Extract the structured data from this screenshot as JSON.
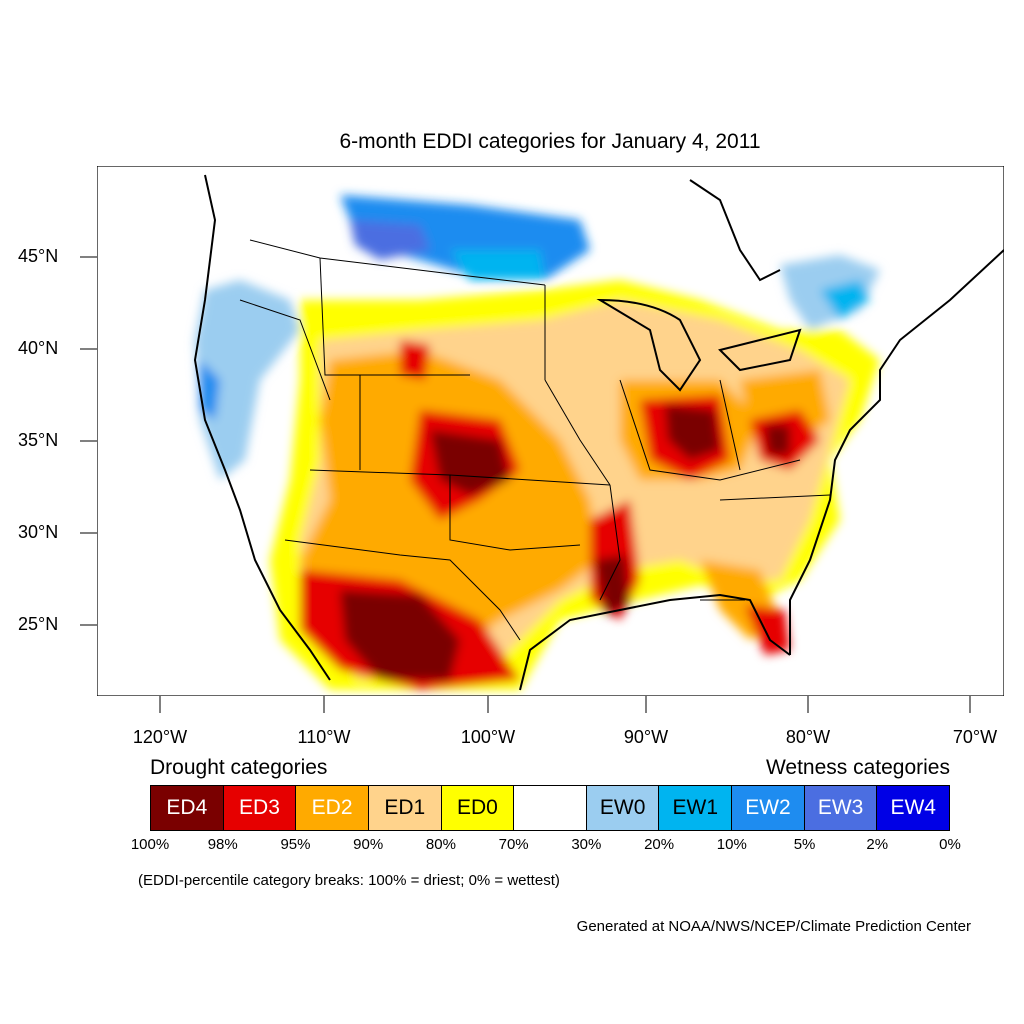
{
  "title": "6-month EDDI categories for January 4, 2011",
  "lat_labels": [
    "45°N",
    "40°N",
    "35°N",
    "30°N",
    "25°N"
  ],
  "lon_labels": [
    "120°W",
    "110°W",
    "100°W",
    "90°W",
    "80°W",
    "70°W"
  ],
  "legend": {
    "drought_heading": "Drought categories",
    "wetness_heading": "Wetness categories",
    "categories": [
      {
        "label": "ED4",
        "color": "#7a0000",
        "text_color": "#ffffff"
      },
      {
        "label": "ED3",
        "color": "#e60000",
        "text_color": "#ffffff"
      },
      {
        "label": "ED2",
        "color": "#ffaa00",
        "text_color": "#ffffff"
      },
      {
        "label": "ED1",
        "color": "#ffd38c",
        "text_color": "#000000"
      },
      {
        "label": "ED0",
        "color": "#ffff00",
        "text_color": "#000000"
      },
      {
        "label": "",
        "color": "#ffffff",
        "text_color": "#000000"
      },
      {
        "label": "EW0",
        "color": "#9bcdf0",
        "text_color": "#000000"
      },
      {
        "label": "EW1",
        "color": "#00b4f0",
        "text_color": "#000000"
      },
      {
        "label": "EW2",
        "color": "#1e8cf0",
        "text_color": "#ffffff"
      },
      {
        "label": "EW3",
        "color": "#4b6ee1",
        "text_color": "#ffffff"
      },
      {
        "label": "EW4",
        "color": "#0000e6",
        "text_color": "#ffffff"
      }
    ],
    "percentiles": [
      "100%",
      "98%",
      "95%",
      "90%",
      "80%",
      "70%",
      "30%",
      "20%",
      "10%",
      "5%",
      "2%",
      "0%"
    ]
  },
  "note": "(EDDI-percentile category breaks: 100% = driest; 0% = wettest)",
  "credit": "Generated at NOAA/NWS/NCEP/Climate Prediction Center"
}
